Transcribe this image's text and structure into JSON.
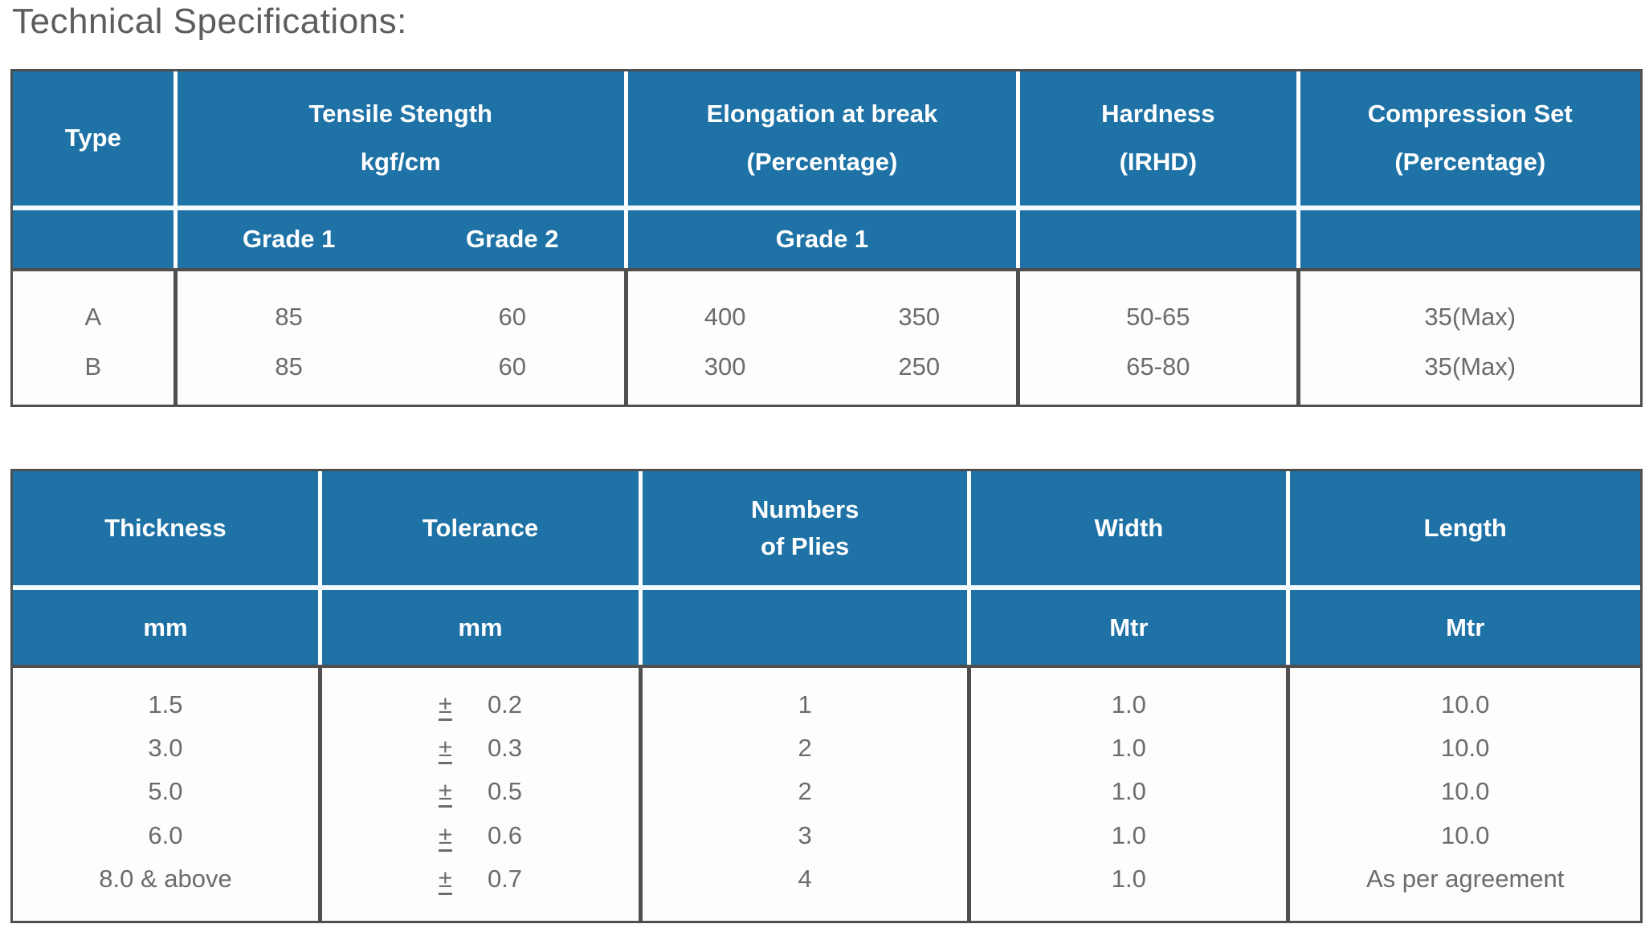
{
  "page": {
    "title": "Technical Specifications:"
  },
  "colors": {
    "header_blue": "#1e72a6",
    "border_gray": "#4f4f4f",
    "data_text_gray": "#6b6c6e",
    "title_gray": "#5c5d5f",
    "header_text": "#ffffff"
  },
  "table1": {
    "header": [
      {
        "line1": "Type",
        "line2": ""
      },
      {
        "line1": "Tensile Stength",
        "line2": "kgf/cm"
      },
      {
        "line1": "Elongation at break",
        "line2": "(Percentage)"
      },
      {
        "line1": "Hardness",
        "line2": "(IRHD)"
      },
      {
        "line1": "Compression Set",
        "line2": "(Percentage)"
      }
    ],
    "subheader": {
      "tensile_grade1": "Grade 1",
      "tensile_grade2": "Grade 2",
      "elongation_grade": "Grade 1"
    },
    "rows": [
      {
        "type": "A",
        "tensile_g1": "85",
        "tensile_g2": "60",
        "elong_1": "400",
        "elong_2": "350",
        "hardness": "50-65",
        "compression_set": "35(Max)"
      },
      {
        "type": "B",
        "tensile_g1": "85",
        "tensile_g2": "60",
        "elong_1": "300",
        "elong_2": "250",
        "hardness": "65-80",
        "compression_set": "35(Max)"
      }
    ]
  },
  "table2": {
    "header": [
      {
        "line1": "Thickness",
        "line2": ""
      },
      {
        "line1": "Tolerance",
        "line2": ""
      },
      {
        "line1": "Numbers",
        "line2": "of Plies"
      },
      {
        "line1": "Width",
        "line2": ""
      },
      {
        "line1": "Length",
        "line2": ""
      }
    ],
    "units": [
      "mm",
      "mm",
      "",
      "Mtr",
      "Mtr"
    ],
    "rows": [
      {
        "thickness": "1.5",
        "plusminus": "±",
        "tolerance": "0.2",
        "plies": "1",
        "width": "1.0",
        "length": "10.0"
      },
      {
        "thickness": "3.0",
        "plusminus": "±",
        "tolerance": "0.3",
        "plies": "2",
        "width": "1.0",
        "length": "10.0"
      },
      {
        "thickness": "5.0",
        "plusminus": "±",
        "tolerance": "0.5",
        "plies": "2",
        "width": "1.0",
        "length": "10.0"
      },
      {
        "thickness": "6.0",
        "plusminus": "±",
        "tolerance": "0.6",
        "plies": "3",
        "width": "1.0",
        "length": "10.0"
      },
      {
        "thickness": "8.0 & above",
        "plusminus": "±",
        "tolerance": "0.7",
        "plies": "4",
        "width": "1.0",
        "length": "As per agreement"
      }
    ]
  }
}
